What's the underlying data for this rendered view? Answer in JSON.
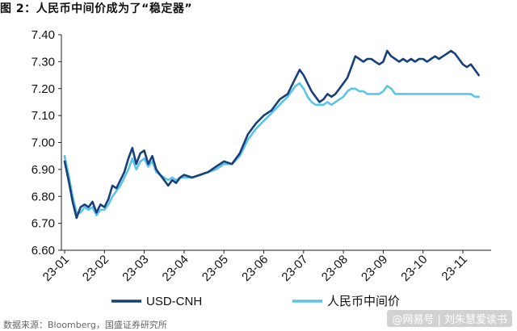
{
  "header": {
    "title": "图 2：人民币中间价成为了“稳定器”"
  },
  "footer": {
    "source": "数据来源：Bloomberg，国盛证券研究所",
    "watermark": "@网易号 | 刘朱慧爱读书"
  },
  "colors": {
    "usd_cnh": "#17407a",
    "fixing": "#5bc4e8"
  },
  "chart_data": {
    "type": "line",
    "title": "",
    "xlabel": "",
    "ylabel": "",
    "ylim": [
      6.6,
      7.4
    ],
    "yticks": [
      "6.60",
      "6.70",
      "6.80",
      "6.90",
      "7.00",
      "7.10",
      "7.20",
      "7.30",
      "7.40"
    ],
    "xticks": [
      "23-01",
      "23-02",
      "23-03",
      "23-04",
      "23-05",
      "23-06",
      "23-07",
      "23-08",
      "23-09",
      "23-10",
      "23-11"
    ],
    "grid": false,
    "legend_position": "bottom",
    "series": [
      {
        "name": "USD-CNH",
        "points": [
          [
            0.0,
            6.93
          ],
          [
            0.1,
            6.86
          ],
          [
            0.2,
            6.78
          ],
          [
            0.3,
            6.72
          ],
          [
            0.4,
            6.76
          ],
          [
            0.5,
            6.77
          ],
          [
            0.6,
            6.76
          ],
          [
            0.7,
            6.78
          ],
          [
            0.8,
            6.74
          ],
          [
            0.9,
            6.77
          ],
          [
            1.0,
            6.76
          ],
          [
            1.1,
            6.79
          ],
          [
            1.2,
            6.84
          ],
          [
            1.3,
            6.83
          ],
          [
            1.4,
            6.86
          ],
          [
            1.5,
            6.89
          ],
          [
            1.6,
            6.94
          ],
          [
            1.7,
            6.98
          ],
          [
            1.8,
            6.92
          ],
          [
            1.9,
            6.96
          ],
          [
            2.0,
            6.97
          ],
          [
            2.1,
            6.92
          ],
          [
            2.2,
            6.95
          ],
          [
            2.3,
            6.9
          ],
          [
            2.4,
            6.88
          ],
          [
            2.5,
            6.86
          ],
          [
            2.6,
            6.84
          ],
          [
            2.7,
            6.86
          ],
          [
            2.8,
            6.85
          ],
          [
            2.9,
            6.87
          ],
          [
            3.0,
            6.88
          ],
          [
            3.2,
            6.87
          ],
          [
            3.4,
            6.88
          ],
          [
            3.6,
            6.89
          ],
          [
            3.8,
            6.91
          ],
          [
            4.0,
            6.93
          ],
          [
            4.2,
            6.92
          ],
          [
            4.4,
            6.96
          ],
          [
            4.6,
            7.03
          ],
          [
            4.8,
            7.07
          ],
          [
            5.0,
            7.1
          ],
          [
            5.2,
            7.12
          ],
          [
            5.4,
            7.16
          ],
          [
            5.6,
            7.18
          ],
          [
            5.8,
            7.24
          ],
          [
            5.9,
            7.27
          ],
          [
            6.0,
            7.25
          ],
          [
            6.1,
            7.22
          ],
          [
            6.2,
            7.19
          ],
          [
            6.3,
            7.17
          ],
          [
            6.4,
            7.15
          ],
          [
            6.5,
            7.16
          ],
          [
            6.6,
            7.18
          ],
          [
            6.7,
            7.17
          ],
          [
            6.8,
            7.18
          ],
          [
            6.9,
            7.2
          ],
          [
            7.0,
            7.22
          ],
          [
            7.1,
            7.24
          ],
          [
            7.2,
            7.28
          ],
          [
            7.3,
            7.32
          ],
          [
            7.4,
            7.31
          ],
          [
            7.5,
            7.3
          ],
          [
            7.6,
            7.31
          ],
          [
            7.7,
            7.31
          ],
          [
            7.8,
            7.3
          ],
          [
            7.9,
            7.29
          ],
          [
            8.0,
            7.3
          ],
          [
            8.1,
            7.34
          ],
          [
            8.2,
            7.32
          ],
          [
            8.3,
            7.31
          ],
          [
            8.4,
            7.3
          ],
          [
            8.5,
            7.31
          ],
          [
            8.6,
            7.3
          ],
          [
            8.7,
            7.31
          ],
          [
            8.8,
            7.3
          ],
          [
            8.9,
            7.31
          ],
          [
            9.0,
            7.31
          ],
          [
            9.1,
            7.3
          ],
          [
            9.2,
            7.31
          ],
          [
            9.3,
            7.32
          ],
          [
            9.4,
            7.31
          ],
          [
            9.5,
            7.32
          ],
          [
            9.6,
            7.33
          ],
          [
            9.7,
            7.34
          ],
          [
            9.8,
            7.33
          ],
          [
            9.9,
            7.31
          ],
          [
            10.0,
            7.29
          ],
          [
            10.1,
            7.28
          ],
          [
            10.2,
            7.29
          ],
          [
            10.3,
            7.27
          ],
          [
            10.4,
            7.25
          ]
        ]
      },
      {
        "name": "人民币中间价",
        "points": [
          [
            0.0,
            6.95
          ],
          [
            0.1,
            6.88
          ],
          [
            0.2,
            6.8
          ],
          [
            0.3,
            6.74
          ],
          [
            0.4,
            6.74
          ],
          [
            0.5,
            6.76
          ],
          [
            0.6,
            6.75
          ],
          [
            0.7,
            6.76
          ],
          [
            0.8,
            6.73
          ],
          [
            0.9,
            6.75
          ],
          [
            1.0,
            6.75
          ],
          [
            1.1,
            6.77
          ],
          [
            1.2,
            6.8
          ],
          [
            1.3,
            6.82
          ],
          [
            1.4,
            6.84
          ],
          [
            1.5,
            6.87
          ],
          [
            1.6,
            6.9
          ],
          [
            1.7,
            6.94
          ],
          [
            1.8,
            6.9
          ],
          [
            1.9,
            6.93
          ],
          [
            2.0,
            6.94
          ],
          [
            2.1,
            6.91
          ],
          [
            2.2,
            6.93
          ],
          [
            2.3,
            6.89
          ],
          [
            2.4,
            6.88
          ],
          [
            2.5,
            6.87
          ],
          [
            2.6,
            6.86
          ],
          [
            2.7,
            6.87
          ],
          [
            2.8,
            6.86
          ],
          [
            2.9,
            6.87
          ],
          [
            3.0,
            6.87
          ],
          [
            3.2,
            6.87
          ],
          [
            3.4,
            6.88
          ],
          [
            3.6,
            6.89
          ],
          [
            3.8,
            6.9
          ],
          [
            4.0,
            6.92
          ],
          [
            4.2,
            6.92
          ],
          [
            4.4,
            6.95
          ],
          [
            4.6,
            7.01
          ],
          [
            4.8,
            7.05
          ],
          [
            5.0,
            7.08
          ],
          [
            5.2,
            7.11
          ],
          [
            5.4,
            7.14
          ],
          [
            5.6,
            7.17
          ],
          [
            5.8,
            7.21
          ],
          [
            5.9,
            7.22
          ],
          [
            6.0,
            7.2
          ],
          [
            6.1,
            7.17
          ],
          [
            6.2,
            7.15
          ],
          [
            6.3,
            7.14
          ],
          [
            6.4,
            7.14
          ],
          [
            6.5,
            7.14
          ],
          [
            6.6,
            7.15
          ],
          [
            6.7,
            7.14
          ],
          [
            6.8,
            7.15
          ],
          [
            6.9,
            7.16
          ],
          [
            7.0,
            7.17
          ],
          [
            7.1,
            7.19
          ],
          [
            7.2,
            7.2
          ],
          [
            7.3,
            7.2
          ],
          [
            7.4,
            7.19
          ],
          [
            7.5,
            7.19
          ],
          [
            7.6,
            7.18
          ],
          [
            7.7,
            7.18
          ],
          [
            7.8,
            7.18
          ],
          [
            7.9,
            7.18
          ],
          [
            8.0,
            7.19
          ],
          [
            8.1,
            7.21
          ],
          [
            8.2,
            7.2
          ],
          [
            8.3,
            7.18
          ],
          [
            8.4,
            7.18
          ],
          [
            8.5,
            7.18
          ],
          [
            8.6,
            7.18
          ],
          [
            8.7,
            7.18
          ],
          [
            8.8,
            7.18
          ],
          [
            8.9,
            7.18
          ],
          [
            9.0,
            7.18
          ],
          [
            9.1,
            7.18
          ],
          [
            9.2,
            7.18
          ],
          [
            9.3,
            7.18
          ],
          [
            9.4,
            7.18
          ],
          [
            9.5,
            7.18
          ],
          [
            9.6,
            7.18
          ],
          [
            9.7,
            7.18
          ],
          [
            9.8,
            7.18
          ],
          [
            9.9,
            7.18
          ],
          [
            10.0,
            7.18
          ],
          [
            10.1,
            7.18
          ],
          [
            10.2,
            7.18
          ],
          [
            10.3,
            7.17
          ],
          [
            10.4,
            7.17
          ]
        ]
      }
    ]
  }
}
